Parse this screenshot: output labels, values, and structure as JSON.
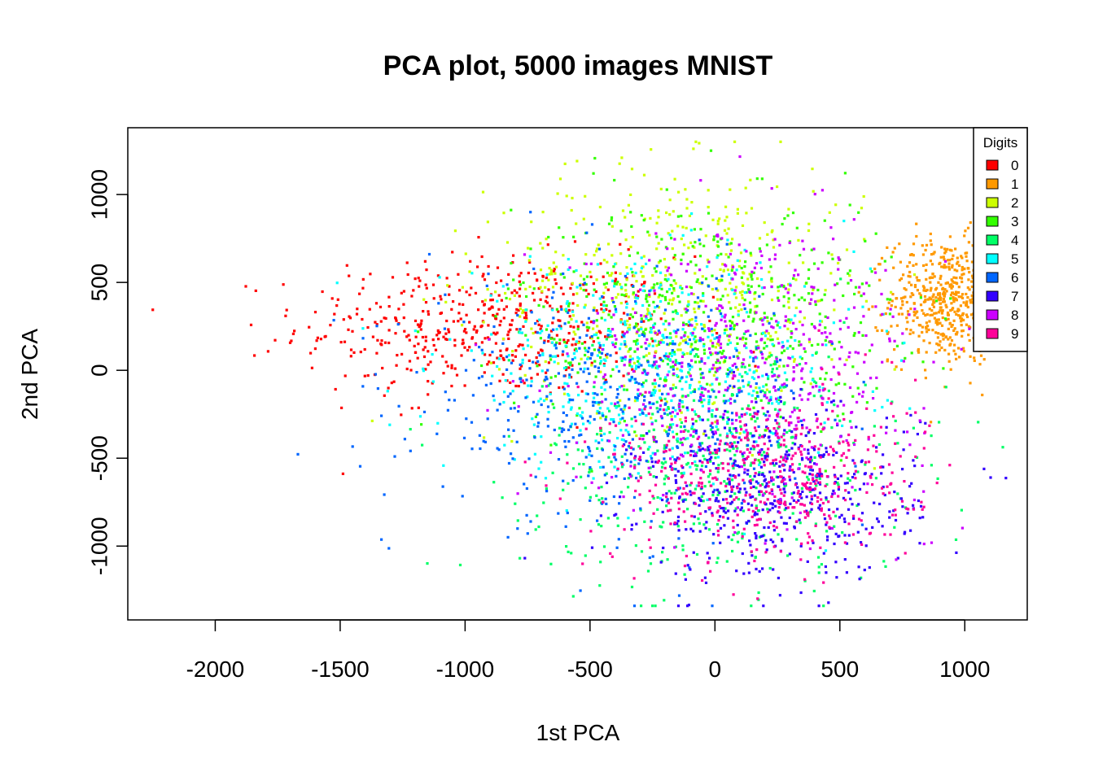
{
  "chart_data": {
    "type": "scatter",
    "title": "PCA plot, 5000 images MNIST",
    "xlabel": "1st PCA",
    "ylabel": "2nd PCA",
    "xlim": [
      -2350,
      1250
    ],
    "ylim": [
      -1420,
      1380
    ],
    "x_ticks": [
      -2000,
      -1500,
      -1000,
      -500,
      0,
      500,
      1000
    ],
    "y_ticks": [
      -1000,
      -500,
      0,
      500,
      1000
    ],
    "grid": false,
    "legend": {
      "title": "Digits",
      "placement": "top-right",
      "entries": [
        "0",
        "1",
        "2",
        "3",
        "4",
        "5",
        "6",
        "7",
        "8",
        "9"
      ]
    },
    "total_points": 5000,
    "series": [
      {
        "name": "0",
        "color": "#ff0000",
        "count": 500,
        "center": [
          -900,
          250
        ],
        "spread": [
          380,
          200
        ]
      },
      {
        "name": "1",
        "color": "#ff9900",
        "count": 500,
        "center": [
          920,
          400
        ],
        "spread": [
          110,
          180
        ]
      },
      {
        "name": "2",
        "color": "#ccff00",
        "count": 500,
        "center": [
          -150,
          450
        ],
        "spread": [
          380,
          350
        ]
      },
      {
        "name": "3",
        "color": "#33ff00",
        "count": 500,
        "center": [
          -50,
          300
        ],
        "spread": [
          380,
          330
        ]
      },
      {
        "name": "4",
        "color": "#00ff66",
        "count": 500,
        "center": [
          0,
          -500
        ],
        "spread": [
          380,
          350
        ]
      },
      {
        "name": "5",
        "color": "#00ffff",
        "count": 500,
        "center": [
          -250,
          0
        ],
        "spread": [
          420,
          300
        ]
      },
      {
        "name": "6",
        "color": "#0066ff",
        "count": 500,
        "center": [
          -400,
          -150
        ],
        "spread": [
          380,
          350
        ]
      },
      {
        "name": "7",
        "color": "#3300ff",
        "count": 500,
        "center": [
          250,
          -700
        ],
        "spread": [
          280,
          250
        ]
      },
      {
        "name": "8",
        "color": "#cc00ff",
        "count": 500,
        "center": [
          150,
          50
        ],
        "spread": [
          360,
          380
        ]
      },
      {
        "name": "9",
        "color": "#ff0099",
        "count": 500,
        "center": [
          200,
          -600
        ],
        "spread": [
          300,
          250
        ]
      }
    ]
  }
}
